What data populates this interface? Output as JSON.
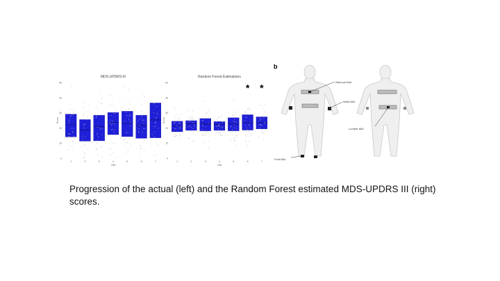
{
  "caption": "Progression of the actual (left) and the Random Forest estimated MDS-UPDRS III (right) scores.",
  "colors": {
    "box": "#1f1fd8",
    "points": "#bbbbbb",
    "body": "#efefef"
  },
  "chart_data": [
    {
      "type": "box",
      "title": "MDS-UPDRS-III",
      "xlabel": "Visit",
      "ylabel": "Score",
      "categories": [
        "1",
        "2",
        "3",
        "4",
        "5",
        "6",
        "7"
      ],
      "ylim": [
        0,
        50
      ],
      "yticks": [
        "0",
        "10",
        "20",
        "30",
        "40",
        "50"
      ],
      "q1": [
        14.1,
        11.3,
        11.5,
        15.6,
        14.3,
        13.2,
        13.5
      ],
      "median": [
        22.4,
        18.7,
        21.0,
        23.6,
        23.2,
        21.6,
        25.3
      ],
      "q3": [
        29.1,
        25.5,
        28.4,
        30.2,
        31.0,
        28.4,
        36.5
      ],
      "significant": []
    },
    {
      "type": "box",
      "title": "Random Forest Estimations",
      "xlabel": "Visit",
      "ylabel": "Score",
      "categories": [
        "1",
        "2",
        "3",
        "4",
        "5",
        "6",
        "7"
      ],
      "ylim": [
        0,
        50
      ],
      "yticks": [
        "0",
        "10",
        "20",
        "30",
        "40",
        "50"
      ],
      "q1": [
        17.5,
        18.4,
        18.1,
        18.4,
        18.1,
        18.6,
        19.4
      ],
      "median": [
        21.3,
        22.7,
        22.6,
        22.3,
        22.7,
        23.5,
        23.6
      ],
      "q3": [
        24.4,
        24.8,
        26.2,
        24.2,
        26.7,
        28.7,
        27.3
      ],
      "significant": [
        "6",
        "7"
      ],
      "significance_mark": "*"
    }
  ],
  "figure": {
    "panel_label": "b",
    "labels": {
      "sternum": "Sternum IMU",
      "wrist": "Wrist IMU",
      "lumbar": "Lumbar IMU",
      "foot": "Foot IMU"
    }
  }
}
